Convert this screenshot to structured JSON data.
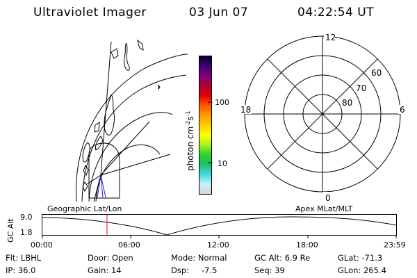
{
  "header": {
    "instrument": "Ultraviolet Imager",
    "date": "03 Jun 07",
    "time": "04:22:54 UT"
  },
  "colorbar": {
    "unit_label": "photon cm",
    "unit_sup1": "-2",
    "unit_mid": "s",
    "unit_sup2": "-1",
    "ticks": [
      {
        "label": "100",
        "value": 100
      },
      {
        "label": "10",
        "value": 10
      }
    ],
    "scale": "log",
    "colors": [
      "#d8d8d8",
      "#c8f0f8",
      "#40d8e0",
      "#20c060",
      "#30d030",
      "#a8f020",
      "#ffff00",
      "#ffcc00",
      "#ff9900",
      "#ff5500",
      "#e00000",
      "#b00030",
      "#800080",
      "#400070",
      "#000030"
    ]
  },
  "polar_plot": {
    "mlt_labels": {
      "top": "12",
      "bottom": "0",
      "left": "18",
      "right": "6"
    },
    "lat_labels": [
      "60",
      "70",
      "80"
    ]
  },
  "timeline": {
    "left_label": "Geographic Lat/Lon",
    "right_label": "Apex MLat/MLT",
    "axis_title": "GC Alt",
    "y_ticks": [
      "9.0",
      "1.8"
    ],
    "x_ticks": [
      "00:00",
      "06:00",
      "12:00",
      "18:00",
      "23:59"
    ],
    "current_time_marker": "04:22:54",
    "marker_color": "#ff0000"
  },
  "info": {
    "row1": {
      "flt": "Flt: LBHL",
      "door": "Door: Open",
      "mode": "Mode: Normal",
      "gcalt": "GC Alt: 6.9 Re",
      "glat": "GLat: -71.3"
    },
    "row2": {
      "ip": "IP: 36.0",
      "gain": "Gain: 14",
      "dsp_label": "Dsp:",
      "dsp_value": "-7.5",
      "seq": "Seq: 39",
      "glon": "GLon: 265.4"
    }
  }
}
